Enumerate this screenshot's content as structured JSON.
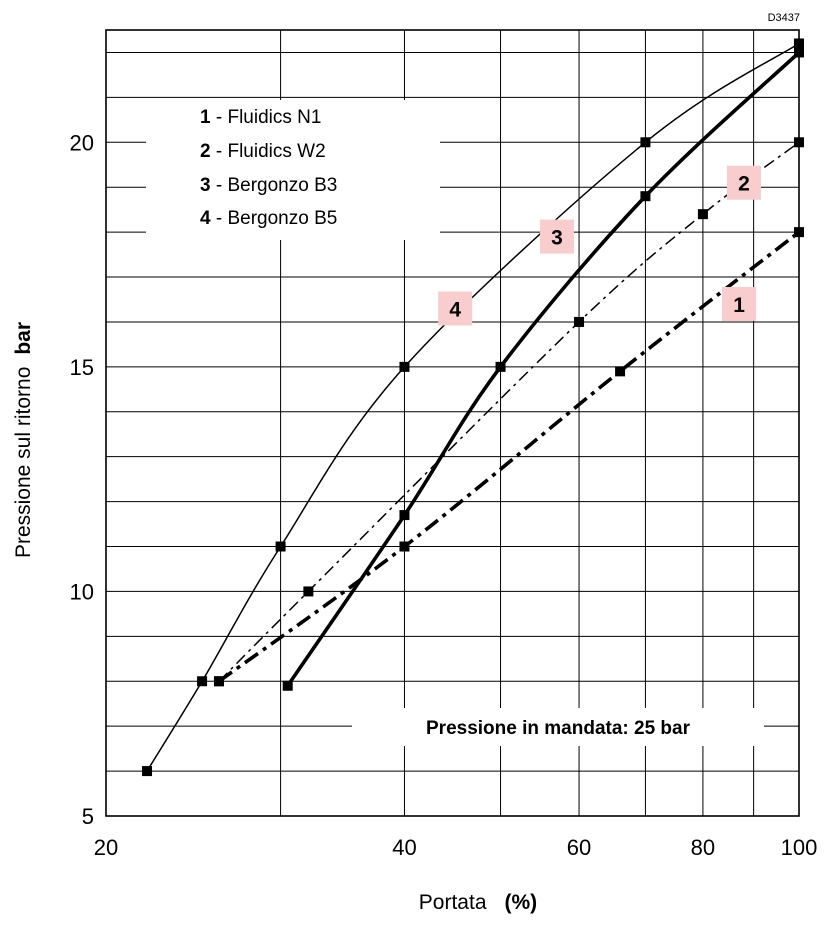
{
  "chart_data": {
    "type": "line",
    "drawing_code": "D3437",
    "title": "",
    "xlabel": "Portata",
    "xlabel_unit": "(%)",
    "ylabel": "Pressione sul ritorno",
    "ylabel_unit": "bar",
    "x_scale": "log",
    "xlim": [
      20,
      100
    ],
    "ylim": [
      5,
      22.5
    ],
    "x_ticks": [
      20,
      40,
      60,
      80,
      100
    ],
    "x_tick_labels": [
      "20",
      "40",
      "60",
      "80",
      "100"
    ],
    "y_ticks": [
      5,
      10,
      15,
      20
    ],
    "y_tick_labels": [
      "5",
      "10",
      "15",
      "20"
    ],
    "x_gridlines": [
      30,
      40,
      50,
      60,
      70,
      80,
      90
    ],
    "y_gridlines": [
      6,
      7,
      8,
      9,
      10,
      11,
      12,
      13,
      14,
      15,
      16,
      17,
      18,
      19,
      20,
      21,
      22
    ],
    "grid": true,
    "legend_position": "top-left",
    "legend": [
      {
        "num": "1",
        "label": "Fluidics N1"
      },
      {
        "num": "2",
        "label": "Fluidics W2"
      },
      {
        "num": "3",
        "label": "Bergonzo B3"
      },
      {
        "num": "4",
        "label": "Bergonzo B5"
      }
    ],
    "annotation": "Pressione in mandata: 25 bar",
    "badge_color": "#f9cdcd",
    "series": [
      {
        "name": "1",
        "line_style": "dash-dot",
        "line_weight": "thick",
        "x": [
          26,
          40,
          66,
          100
        ],
        "y": [
          8,
          11,
          14.9,
          18
        ],
        "badge_x": 87,
        "badge_y": 16.4
      },
      {
        "name": "2",
        "line_style": "dash-dot",
        "line_weight": "thin",
        "x": [
          26,
          32,
          60,
          80,
          100
        ],
        "y": [
          8,
          10,
          16,
          18.4,
          20
        ],
        "badge_x": 88,
        "badge_y": 19.1
      },
      {
        "name": "3",
        "line_style": "solid",
        "line_weight": "thick",
        "x": [
          30.5,
          40,
          50,
          70,
          100
        ],
        "y": [
          7.9,
          11.7,
          15,
          18.8,
          22
        ],
        "badge_x": 57,
        "badge_y": 17.9
      },
      {
        "name": "4",
        "line_style": "solid",
        "line_weight": "thin",
        "x": [
          22,
          25,
          30,
          40,
          70,
          100
        ],
        "y": [
          6,
          8,
          11,
          15,
          20,
          22.2
        ],
        "badge_x": 45,
        "badge_y": 16.3
      }
    ]
  }
}
